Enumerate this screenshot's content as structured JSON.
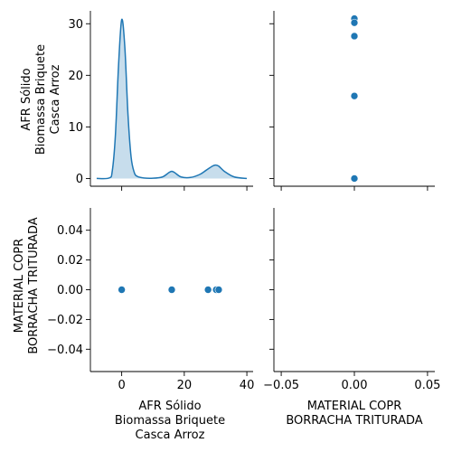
{
  "chart_data": [
    {
      "type": "area",
      "panel": "diagonal-1",
      "description": "kde",
      "x": [
        -8,
        -4,
        -3,
        -2,
        -1,
        0,
        1,
        2,
        3,
        4,
        5,
        7,
        10,
        13,
        15,
        16,
        17,
        19,
        22,
        25,
        27,
        29,
        30,
        31,
        33,
        36,
        40
      ],
      "y": [
        0,
        0.1,
        1.5,
        8.5,
        22,
        30.8,
        25.5,
        12.5,
        4.2,
        1.2,
        0.4,
        0.1,
        0.05,
        0.3,
        1.1,
        1.4,
        1.1,
        0.3,
        0.2,
        0.8,
        1.6,
        2.4,
        2.6,
        2.4,
        1.3,
        0.3,
        0
      ],
      "xlim": [
        -10,
        42
      ],
      "ylim": [
        -1.5,
        32.5
      ],
      "yticks": [
        0,
        10,
        20,
        30
      ]
    },
    {
      "type": "scatter",
      "panel": "upper-right",
      "x": [
        0,
        0,
        0,
        0,
        0,
        0
      ],
      "y": [
        31,
        30.2,
        27.6,
        16,
        0,
        0
      ],
      "xlim": [
        -0.055,
        0.055
      ],
      "ylim": [
        -1.5,
        32.5
      ]
    },
    {
      "type": "scatter",
      "panel": "lower-left",
      "x": [
        0,
        16,
        27.6,
        30.2,
        31,
        0
      ],
      "y": [
        0,
        0,
        0,
        0,
        0,
        0
      ],
      "xlim": [
        -10,
        42
      ],
      "ylim": [
        -0.055,
        0.055
      ],
      "xticks": [
        0,
        20,
        40
      ],
      "yticks": [
        -0.04,
        -0.02,
        0.0,
        0.02,
        0.04
      ]
    },
    {
      "type": "scatter",
      "panel": "diagonal-2",
      "x": [],
      "y": [],
      "xlim": [
        -0.055,
        0.055
      ],
      "xticks": [
        -0.05,
        0.0,
        0.05
      ]
    }
  ],
  "labels": {
    "var1_lines": [
      "AFR Sólido",
      "Biomassa Briquete",
      "Casca Arroz"
    ],
    "var2_lines": [
      "MATERIAL COPR",
      "BORRACHA TRITURADA"
    ]
  },
  "tick_labels": {
    "top_y": [
      "0",
      "10",
      "20",
      "30"
    ],
    "bottom_y": [
      "−0.04",
      "−0.02",
      "0.00",
      "0.02",
      "0.04"
    ],
    "bottom_left_x": [
      "0",
      "20",
      "40"
    ],
    "bottom_right_x": [
      "−0.05",
      "0.00",
      "0.05"
    ]
  },
  "colors": {
    "series": "#1f77b4"
  }
}
